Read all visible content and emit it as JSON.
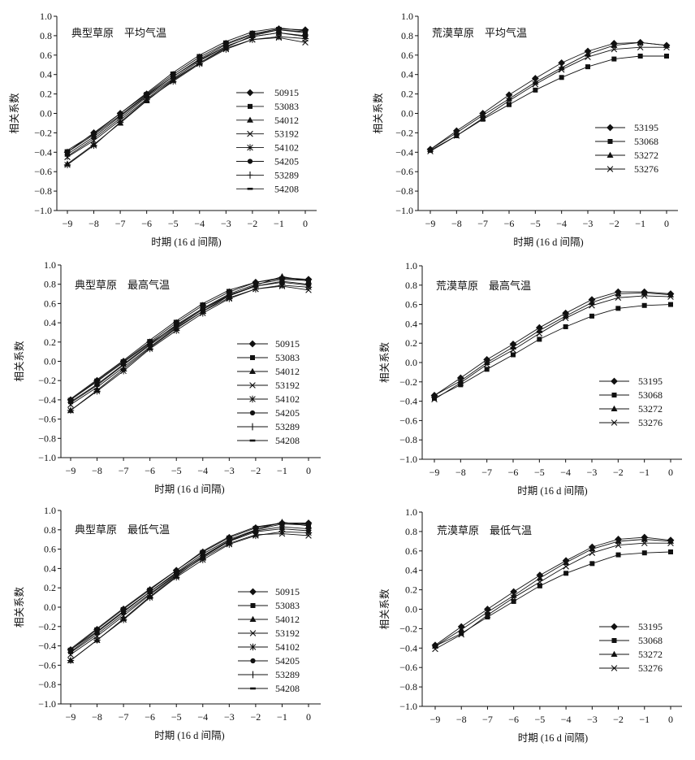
{
  "figure": {
    "background": "#ffffff",
    "ink": "#111111"
  },
  "chart_data": [
    {
      "type": "line",
      "title": "典型草原　平均气温",
      "xlabel": "时期 (16 d 间隔)",
      "ylabel": "相关系数",
      "x": [
        -9,
        -8,
        -7,
        -6,
        -5,
        -4,
        -3,
        -2,
        -1,
        0
      ],
      "x_tick_labels": [
        "−9",
        "−8",
        "−7",
        "−6",
        "−5",
        "−4",
        "−3",
        "−2",
        "−1",
        "0"
      ],
      "ylim": [
        -1.0,
        1.0
      ],
      "y_ticks": [
        1.0,
        0.8,
        0.6,
        0.4,
        0.2,
        0.0,
        -0.2,
        -0.4,
        -0.6,
        -0.8,
        -1.0
      ],
      "y_tick_labels": [
        "1.0",
        "0.8",
        "0.6",
        "0.4",
        "0.2",
        "0.0",
        "−0.2",
        "−0.4",
        "−0.6",
        "−0.8",
        "−1.0"
      ],
      "grid": false,
      "legend_position": "right",
      "series": [
        {
          "name": "50915",
          "marker": "diamond",
          "values": [
            -0.4,
            -0.2,
            0.0,
            0.2,
            0.4,
            0.58,
            0.72,
            0.82,
            0.87,
            0.86
          ]
        },
        {
          "name": "53083",
          "marker": "square",
          "values": [
            -0.42,
            -0.24,
            -0.03,
            0.18,
            0.38,
            0.56,
            0.71,
            0.81,
            0.86,
            0.84
          ]
        },
        {
          "name": "54012",
          "marker": "triangle",
          "values": [
            -0.52,
            -0.32,
            -0.1,
            0.13,
            0.34,
            0.52,
            0.68,
            0.8,
            0.86,
            0.83
          ]
        },
        {
          "name": "53192",
          "marker": "x",
          "values": [
            -0.45,
            -0.28,
            -0.07,
            0.15,
            0.35,
            0.52,
            0.67,
            0.76,
            0.78,
            0.73
          ]
        },
        {
          "name": "54102",
          "marker": "asterisk",
          "values": [
            -0.53,
            -0.33,
            -0.09,
            0.14,
            0.33,
            0.51,
            0.66,
            0.76,
            0.79,
            0.77
          ]
        },
        {
          "name": "54205",
          "marker": "circle",
          "values": [
            -0.4,
            -0.22,
            -0.02,
            0.19,
            0.38,
            0.55,
            0.69,
            0.79,
            0.83,
            0.79
          ]
        },
        {
          "name": "53289",
          "marker": "plus",
          "values": [
            -0.44,
            -0.26,
            -0.05,
            0.17,
            0.36,
            0.54,
            0.69,
            0.79,
            0.83,
            0.8
          ]
        },
        {
          "name": "54208",
          "marker": "dash",
          "values": [
            -0.38,
            -0.21,
            0.0,
            0.21,
            0.42,
            0.6,
            0.74,
            0.84,
            0.88,
            0.85
          ]
        }
      ]
    },
    {
      "type": "line",
      "title": "荒漠草原　平均气温",
      "xlabel": "时期 (16 d 间隔)",
      "ylabel": "相关系数",
      "x": [
        -9,
        -8,
        -7,
        -6,
        -5,
        -4,
        -3,
        -2,
        -1,
        0
      ],
      "x_tick_labels": [
        "−9",
        "−8",
        "−7",
        "−6",
        "−5",
        "−4",
        "−3",
        "−2",
        "−1",
        "0"
      ],
      "ylim": [
        -1.0,
        1.0
      ],
      "y_ticks": [
        1.0,
        0.8,
        0.6,
        0.4,
        0.2,
        0.0,
        -0.2,
        -0.4,
        -0.6,
        -0.8,
        -1.0
      ],
      "y_tick_labels": [
        "1.0",
        "0.8",
        "0.6",
        "0.4",
        "0.2",
        "0.0",
        "−0.2",
        "−0.4",
        "−0.6",
        "−0.8",
        "−1.0"
      ],
      "grid": false,
      "legend_position": "right",
      "series": [
        {
          "name": "53195",
          "marker": "diamond",
          "values": [
            -0.37,
            -0.18,
            0.0,
            0.19,
            0.36,
            0.52,
            0.64,
            0.72,
            0.73,
            0.7
          ]
        },
        {
          "name": "53068",
          "marker": "square",
          "values": [
            -0.38,
            -0.23,
            -0.06,
            0.09,
            0.24,
            0.37,
            0.48,
            0.56,
            0.59,
            0.59
          ]
        },
        {
          "name": "53272",
          "marker": "triangle",
          "values": [
            -0.37,
            -0.2,
            -0.02,
            0.15,
            0.32,
            0.47,
            0.61,
            0.7,
            0.73,
            0.7
          ]
        },
        {
          "name": "53276",
          "marker": "x",
          "values": [
            -0.39,
            -0.23,
            -0.05,
            0.13,
            0.3,
            0.45,
            0.58,
            0.66,
            0.68,
            0.68
          ]
        }
      ]
    },
    {
      "type": "line",
      "title": "典型草原　最高气温",
      "xlabel": "时期 (16 d 间隔)",
      "ylabel": "相关系数",
      "x": [
        -9,
        -8,
        -7,
        -6,
        -5,
        -4,
        -3,
        -2,
        -1,
        0
      ],
      "x_tick_labels": [
        "−9",
        "−8",
        "−7",
        "−6",
        "−5",
        "−4",
        "−3",
        "−2",
        "−1",
        "0"
      ],
      "ylim": [
        -1.0,
        1.0
      ],
      "y_ticks": [
        1.0,
        0.8,
        0.6,
        0.4,
        0.2,
        0.0,
        -0.2,
        -0.4,
        -0.6,
        -0.8,
        -1.0
      ],
      "y_tick_labels": [
        "1.0",
        "0.8",
        "0.6",
        "0.4",
        "0.2",
        "0.0",
        "−0.2",
        "−0.4",
        "−0.6",
        "−0.8",
        "−1.0"
      ],
      "grid": false,
      "legend_position": "right",
      "series": [
        {
          "name": "50915",
          "marker": "diamond",
          "values": [
            -0.4,
            -0.2,
            0.0,
            0.2,
            0.4,
            0.58,
            0.72,
            0.82,
            0.86,
            0.85
          ]
        },
        {
          "name": "53083",
          "marker": "square",
          "values": [
            -0.42,
            -0.24,
            -0.03,
            0.18,
            0.38,
            0.55,
            0.7,
            0.8,
            0.85,
            0.84
          ]
        },
        {
          "name": "54012",
          "marker": "triangle",
          "values": [
            -0.51,
            -0.3,
            -0.08,
            0.14,
            0.34,
            0.52,
            0.68,
            0.79,
            0.88,
            0.83
          ]
        },
        {
          "name": "53192",
          "marker": "x",
          "values": [
            -0.45,
            -0.27,
            -0.06,
            0.15,
            0.35,
            0.52,
            0.66,
            0.75,
            0.78,
            0.74
          ]
        },
        {
          "name": "54102",
          "marker": "asterisk",
          "values": [
            -0.51,
            -0.31,
            -0.1,
            0.13,
            0.32,
            0.5,
            0.65,
            0.75,
            0.79,
            0.77
          ]
        },
        {
          "name": "54205",
          "marker": "circle",
          "values": [
            -0.4,
            -0.21,
            -0.01,
            0.19,
            0.37,
            0.54,
            0.68,
            0.78,
            0.82,
            0.79
          ]
        },
        {
          "name": "53289",
          "marker": "plus",
          "values": [
            -0.43,
            -0.25,
            -0.04,
            0.17,
            0.36,
            0.54,
            0.69,
            0.78,
            0.83,
            0.8
          ]
        },
        {
          "name": "54208",
          "marker": "dash",
          "values": [
            -0.39,
            -0.19,
            0.01,
            0.22,
            0.42,
            0.6,
            0.74,
            0.82,
            0.87,
            0.85
          ]
        }
      ]
    },
    {
      "type": "line",
      "title": "荒漠草原　最高气温",
      "xlabel": "时期 (16 d 间隔)",
      "ylabel": "相关系数",
      "x": [
        -9,
        -8,
        -7,
        -6,
        -5,
        -4,
        -3,
        -2,
        -1,
        0
      ],
      "x_tick_labels": [
        "−9",
        "−8",
        "−7",
        "−6",
        "−5",
        "−4",
        "−3",
        "−2",
        "−1",
        "0"
      ],
      "ylim": [
        -1.0,
        1.0
      ],
      "y_ticks": [
        1.0,
        0.8,
        0.6,
        0.4,
        0.2,
        0.0,
        -0.2,
        -0.4,
        -0.6,
        -0.8,
        -1.0
      ],
      "y_tick_labels": [
        "1.0",
        "0.8",
        "0.6",
        "0.4",
        "0.2",
        "0.0",
        "−0.2",
        "−0.4",
        "−0.6",
        "−0.8",
        "−1.0"
      ],
      "grid": false,
      "legend_position": "right",
      "series": [
        {
          "name": "53195",
          "marker": "diamond",
          "values": [
            -0.34,
            -0.16,
            0.03,
            0.19,
            0.36,
            0.51,
            0.65,
            0.73,
            0.73,
            0.71
          ]
        },
        {
          "name": "53068",
          "marker": "square",
          "values": [
            -0.37,
            -0.23,
            -0.07,
            0.08,
            0.24,
            0.37,
            0.48,
            0.56,
            0.59,
            0.6
          ]
        },
        {
          "name": "53272",
          "marker": "triangle",
          "values": [
            -0.34,
            -0.19,
            0.0,
            0.16,
            0.33,
            0.48,
            0.62,
            0.71,
            0.72,
            0.7
          ]
        },
        {
          "name": "53276",
          "marker": "x",
          "values": [
            -0.38,
            -0.21,
            -0.02,
            0.13,
            0.3,
            0.46,
            0.59,
            0.67,
            0.69,
            0.68
          ]
        }
      ]
    },
    {
      "type": "line",
      "title": "典型草原　最低气温",
      "xlabel": "时期 (16 d 间隔)",
      "ylabel": "相关系数",
      "x": [
        -9,
        -8,
        -7,
        -6,
        -5,
        -4,
        -3,
        -2,
        -1,
        0
      ],
      "x_tick_labels": [
        "−9",
        "−8",
        "−7",
        "−6",
        "−5",
        "−4",
        "−3",
        "−2",
        "−1",
        "0"
      ],
      "ylim": [
        -1.0,
        1.0
      ],
      "y_ticks": [
        1.0,
        0.8,
        0.6,
        0.4,
        0.2,
        0.0,
        -0.2,
        -0.4,
        -0.6,
        -0.8,
        -1.0
      ],
      "y_tick_labels": [
        "1.0",
        "0.8",
        "0.6",
        "0.4",
        "0.2",
        "0.0",
        "−0.2",
        "−0.4",
        "−0.6",
        "−0.8",
        "−1.0"
      ],
      "grid": false,
      "legend_position": "right",
      "series": [
        {
          "name": "50915",
          "marker": "diamond",
          "values": [
            -0.44,
            -0.23,
            -0.02,
            0.18,
            0.38,
            0.57,
            0.72,
            0.82,
            0.87,
            0.87
          ]
        },
        {
          "name": "53083",
          "marker": "square",
          "values": [
            -0.46,
            -0.26,
            -0.05,
            0.16,
            0.36,
            0.55,
            0.7,
            0.8,
            0.86,
            0.85
          ]
        },
        {
          "name": "54012",
          "marker": "triangle",
          "values": [
            -0.55,
            -0.34,
            -0.12,
            0.11,
            0.32,
            0.52,
            0.68,
            0.8,
            0.88,
            0.84
          ]
        },
        {
          "name": "53192",
          "marker": "x",
          "values": [
            -0.49,
            -0.3,
            -0.09,
            0.13,
            0.33,
            0.51,
            0.66,
            0.75,
            0.76,
            0.74
          ]
        },
        {
          "name": "54102",
          "marker": "asterisk",
          "values": [
            -0.55,
            -0.34,
            -0.13,
            0.1,
            0.31,
            0.49,
            0.65,
            0.74,
            0.78,
            0.77
          ]
        },
        {
          "name": "54205",
          "marker": "circle",
          "values": [
            -0.44,
            -0.25,
            -0.04,
            0.16,
            0.35,
            0.53,
            0.68,
            0.78,
            0.81,
            0.79
          ]
        },
        {
          "name": "53289",
          "marker": "plus",
          "values": [
            -0.47,
            -0.28,
            -0.07,
            0.14,
            0.34,
            0.53,
            0.69,
            0.79,
            0.83,
            0.81
          ]
        },
        {
          "name": "54208",
          "marker": "dash",
          "values": [
            -0.43,
            -0.22,
            -0.01,
            0.19,
            0.38,
            0.58,
            0.73,
            0.83,
            0.87,
            0.86
          ]
        }
      ]
    },
    {
      "type": "line",
      "title": "荒漠草原　最低气温",
      "xlabel": "时期 (16 d 间隔)",
      "ylabel": "相关系数",
      "x": [
        -9,
        -8,
        -7,
        -6,
        -5,
        -4,
        -3,
        -2,
        -1,
        0
      ],
      "x_tick_labels": [
        "−9",
        "−8",
        "−7",
        "−6",
        "−5",
        "−4",
        "−3",
        "−2",
        "−1",
        "0"
      ],
      "ylim": [
        -1.0,
        1.0
      ],
      "y_ticks": [
        1.0,
        0.8,
        0.6,
        0.4,
        0.2,
        0.0,
        -0.2,
        -0.4,
        -0.6,
        -0.8,
        -1.0
      ],
      "y_tick_labels": [
        "1.0",
        "0.8",
        "0.6",
        "0.4",
        "0.2",
        "0.0",
        "−0.2",
        "−0.4",
        "−0.6",
        "−0.8",
        "−1.0"
      ],
      "grid": false,
      "legend_position": "right",
      "series": [
        {
          "name": "53195",
          "marker": "diamond",
          "values": [
            -0.37,
            -0.18,
            0.0,
            0.18,
            0.35,
            0.5,
            0.64,
            0.72,
            0.74,
            0.71
          ]
        },
        {
          "name": "53068",
          "marker": "square",
          "values": [
            -0.38,
            -0.25,
            -0.08,
            0.08,
            0.24,
            0.37,
            0.47,
            0.56,
            0.58,
            0.59
          ]
        },
        {
          "name": "53272",
          "marker": "triangle",
          "values": [
            -0.38,
            -0.21,
            -0.03,
            0.14,
            0.32,
            0.48,
            0.62,
            0.7,
            0.72,
            0.7
          ]
        },
        {
          "name": "53276",
          "marker": "x",
          "values": [
            -0.41,
            -0.26,
            -0.06,
            0.12,
            0.28,
            0.44,
            0.58,
            0.66,
            0.68,
            0.68
          ]
        }
      ]
    }
  ]
}
